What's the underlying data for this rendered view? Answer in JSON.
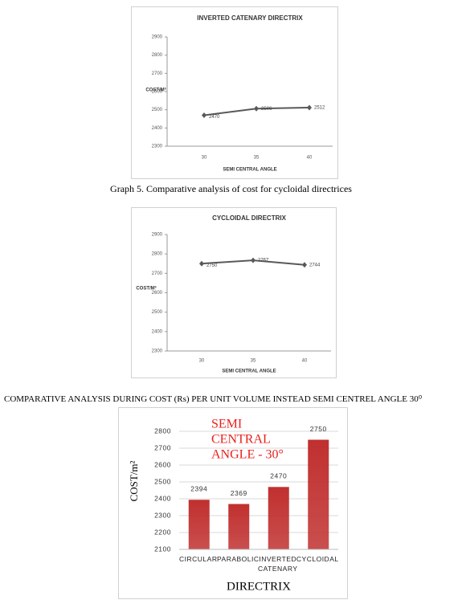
{
  "chart_data": [
    {
      "type": "line",
      "title": "INVERTED CATENARY DIRECTRIX",
      "y_label": "COST/M³",
      "x_label": "SEMI CENTRAL ANGLE",
      "categories": [
        "30",
        "35",
        "40"
      ],
      "values": [
        2470,
        2506,
        2512
      ],
      "color": "#595959",
      "ylim": [
        2300,
        2900
      ],
      "yticks": [
        2300,
        2400,
        2500,
        2600,
        2700,
        2800,
        2900
      ],
      "grid": false
    },
    {
      "type": "line",
      "title": "CYCLOIDAL DIRECTRIX",
      "y_label": "COST/M³",
      "x_label": "SEMI CENTRAL ANGLE",
      "categories": [
        "30",
        "35",
        "40"
      ],
      "values": [
        2750,
        2767,
        2744
      ],
      "color": "#595959",
      "ylim": [
        2300,
        2900
      ],
      "yticks": [
        2300,
        2400,
        2500,
        2600,
        2700,
        2800,
        2900
      ],
      "grid": false
    },
    {
      "type": "bar",
      "y_label": "COST/m²",
      "x_label": "DIRECTRIX",
      "annotation_lines": [
        "SEMI",
        "CENTRAL",
        "ANGLE  - 30°"
      ],
      "categories": [
        "CIRCULAR",
        "PARABOLIC",
        "INVERTED CATENARY",
        "CYCLOIDAL"
      ],
      "values": [
        2394,
        2369,
        2470,
        2750
      ],
      "color": "#c0302f",
      "ylim": [
        2100,
        2800
      ],
      "yticks": [
        2100,
        2200,
        2300,
        2400,
        2500,
        2600,
        2700,
        2800
      ],
      "grid": true
    }
  ],
  "captions": [
    "Graph 5. Comparative analysis of cost for cycloidal directrices",
    "COMPARATIVE ANALYSIS DURING COST (Rs) PER UNIT VOLUME INSTEAD SEMI CENTREL ANGLE 30⁰"
  ]
}
